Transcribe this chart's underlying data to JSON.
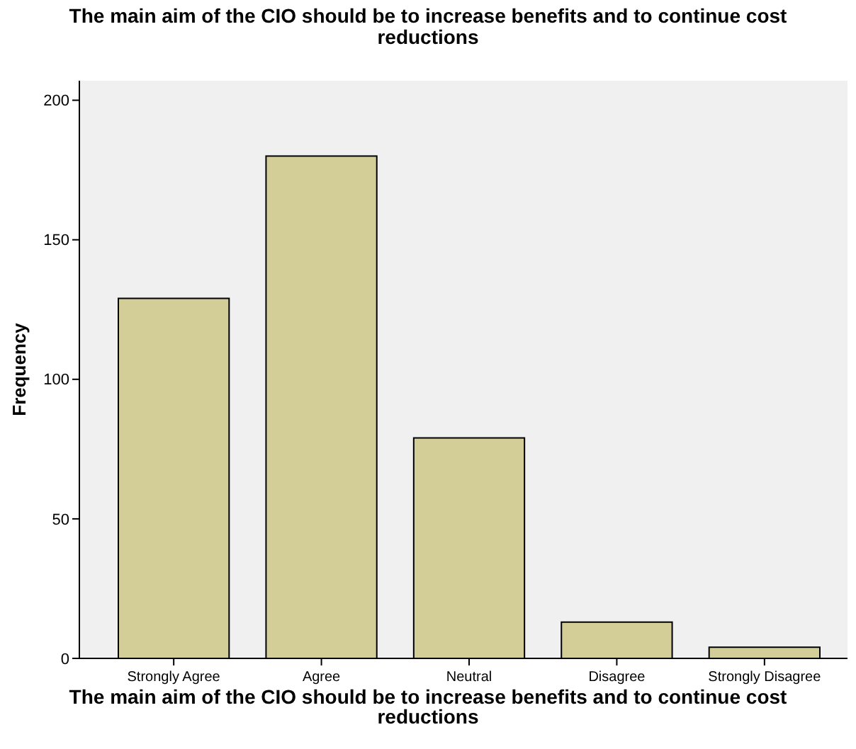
{
  "chart_data": {
    "type": "bar",
    "title": "The main aim of the CIO should be to increase benefits and to continue cost reductions",
    "xlabel": "The main aim of the CIO should be to increase benefits and to continue cost reductions",
    "ylabel": "Frequency",
    "categories": [
      "Strongly Agree",
      "Agree",
      "Neutral",
      "Disagree",
      "Strongly Disagree"
    ],
    "values": [
      129,
      180,
      79,
      13,
      4
    ],
    "color": "#d3ce97",
    "ylim": [
      0,
      207
    ],
    "yticks": [
      0,
      50,
      100,
      150,
      200
    ],
    "grid": false
  }
}
